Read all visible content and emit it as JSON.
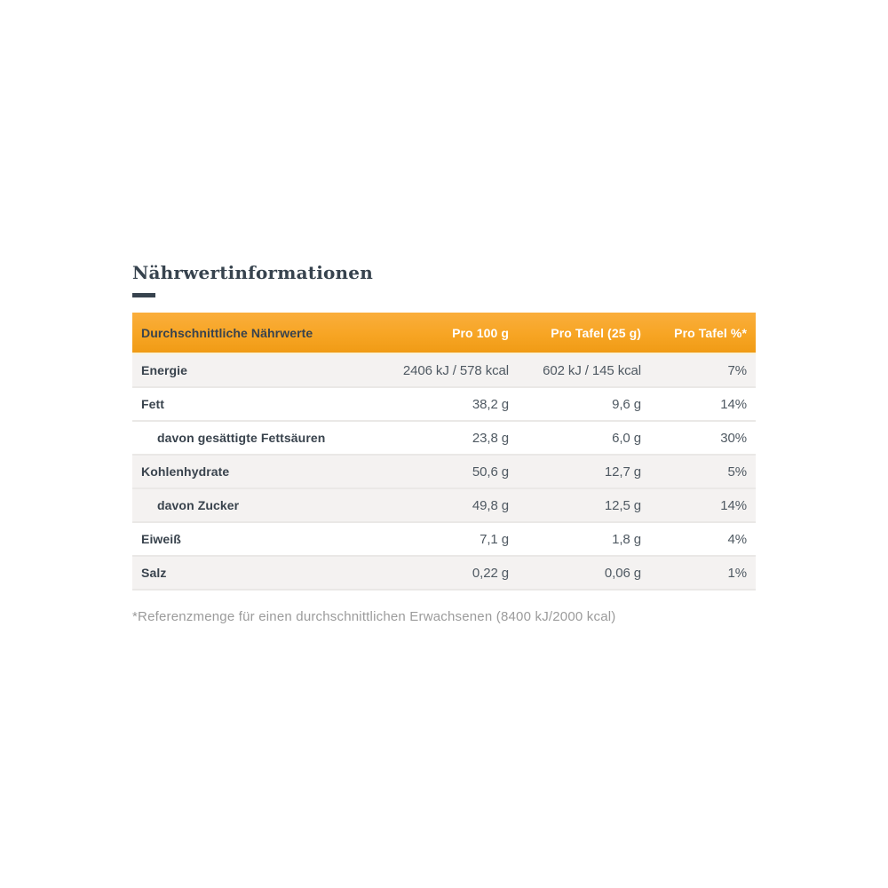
{
  "section": {
    "title": "Nährwertinformationen"
  },
  "table": {
    "headers": [
      "Durchschnittliche Nährwerte",
      "Pro 100 g",
      "Pro Tafel (25 g)",
      "Pro Tafel %*"
    ],
    "rows": [
      {
        "label": "Energie",
        "per100": "2406 kJ / 578 kcal",
        "perTafel": "602 kJ / 145 kcal",
        "percent": "7%"
      },
      {
        "label": "Fett",
        "per100": "38,2 g",
        "perTafel": "9,6 g",
        "percent": "14%"
      },
      {
        "label": "davon gesättigte Fettsäuren",
        "per100": "23,8 g",
        "perTafel": "6,0 g",
        "percent": "30%"
      },
      {
        "label": "Kohlenhydrate",
        "per100": "50,6 g",
        "perTafel": "12,7 g",
        "percent": "5%"
      },
      {
        "label": "davon Zucker",
        "per100": "49,8 g",
        "perTafel": "12,5 g",
        "percent": "14%"
      },
      {
        "label": "Eiweiß",
        "per100": "7,1 g",
        "perTafel": "1,8 g",
        "percent": "4%"
      },
      {
        "label": "Salz",
        "per100": "0,22 g",
        "perTafel": "0,06 g",
        "percent": "1%"
      }
    ]
  },
  "footnote": "*Referenzmenge für einen durchschnittlichen Erwachsenen (8400 kJ/2000 kcal)",
  "colors": {
    "header_bg": "#F7A524",
    "header_text": "#FFFFFF",
    "title_text": "#37434E",
    "label_text": "#39434D",
    "value_text": "#4F5962",
    "shaded_row_bg": "#F4F2F1",
    "divider": "#EAE8E6",
    "footnote_text": "#9B9B9B"
  }
}
